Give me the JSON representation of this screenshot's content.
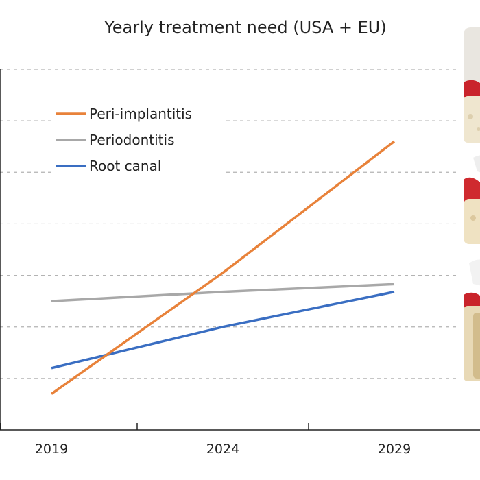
{
  "chart_data": {
    "type": "line",
    "title": "Yearly treatment need (USA + EU)",
    "xlabel": "",
    "ylabel": "",
    "x": [
      "2019",
      "2024",
      "2029"
    ],
    "xlim": [
      2017.5,
      2032
    ],
    "ylim": [
      0,
      7
    ],
    "grid": true,
    "legend_position": "top-left",
    "series": [
      {
        "name": "Peri-implantitis",
        "color": "#E8823A",
        "values": [
          0.7,
          3.05,
          5.6
        ]
      },
      {
        "name": "Periodontitis",
        "color": "#A8A8A8",
        "values": [
          2.5,
          2.68,
          2.83
        ]
      },
      {
        "name": "Root canal",
        "color": "#3A6EC2",
        "values": [
          1.2,
          2.0,
          2.68
        ]
      }
    ]
  }
}
